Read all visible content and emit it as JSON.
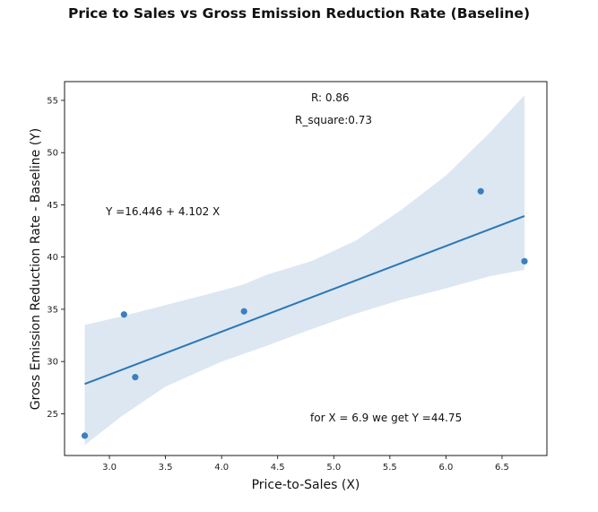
{
  "chart_data": {
    "type": "scatter",
    "title": "Price to Sales vs Gross Emission Reduction Rate (Baseline)",
    "xlabel": "Price-to-Sales (X)",
    "ylabel": "Gross Emission Reduction Rate - Baseline (Y)",
    "xlim": [
      2.6,
      6.9
    ],
    "ylim": [
      21.0,
      56.8
    ],
    "x_ticks": [
      "3.0",
      "3.5",
      "4.0",
      "4.5",
      "5.0",
      "5.5",
      "6.0",
      "6.5"
    ],
    "y_ticks": [
      "25",
      "30",
      "35",
      "40",
      "45",
      "50",
      "55"
    ],
    "grid": false,
    "points": [
      {
        "x": 2.78,
        "y": 22.9
      },
      {
        "x": 3.13,
        "y": 34.5
      },
      {
        "x": 3.23,
        "y": 28.5
      },
      {
        "x": 4.2,
        "y": 34.8
      },
      {
        "x": 6.31,
        "y": 46.3
      },
      {
        "x": 6.7,
        "y": 39.6
      }
    ],
    "regression": {
      "intercept": 16.446,
      "slope": 4.102,
      "x_range": [
        2.78,
        6.7
      ]
    },
    "confidence_band": {
      "upper": [
        [
          2.78,
          33.5
        ],
        [
          3.1,
          34.3
        ],
        [
          3.5,
          35.4
        ],
        [
          4.0,
          36.8
        ],
        [
          4.2,
          37.4
        ],
        [
          4.4,
          38.3
        ],
        [
          4.8,
          39.6
        ],
        [
          5.2,
          41.6
        ],
        [
          5.6,
          44.5
        ],
        [
          6.0,
          47.8
        ],
        [
          6.4,
          52.0
        ],
        [
          6.7,
          55.5
        ]
      ],
      "lower": [
        [
          2.78,
          22.0
        ],
        [
          3.1,
          24.7
        ],
        [
          3.5,
          27.6
        ],
        [
          4.0,
          30.0
        ],
        [
          4.4,
          31.5
        ],
        [
          4.8,
          33.1
        ],
        [
          5.2,
          34.6
        ],
        [
          5.6,
          35.9
        ],
        [
          6.0,
          37.0
        ],
        [
          6.4,
          38.2
        ],
        [
          6.7,
          38.8
        ]
      ]
    },
    "colors": {
      "point": "#3a7fbf",
      "line": "#2b76b5",
      "band": "#dce7f2"
    },
    "annotations": {
      "r": "R:  0.86",
      "r_square": "R_square:0.73",
      "equation": "Y =16.446 + 4.102 X",
      "prediction": "for X = 6.9 we get Y =44.75"
    }
  }
}
